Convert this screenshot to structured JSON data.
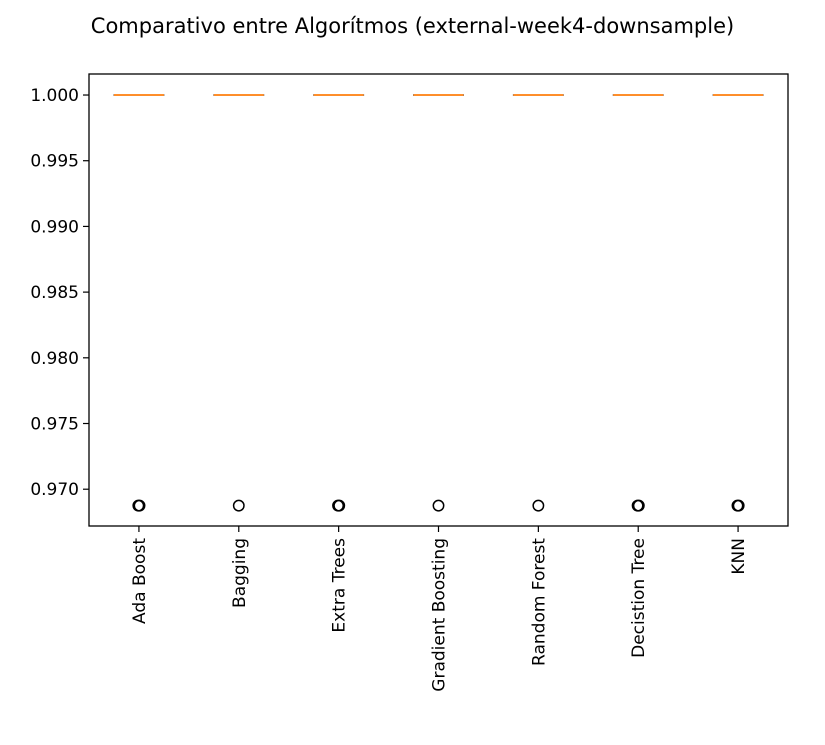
{
  "chart_data": {
    "type": "boxplot",
    "title": "Comparativo entre Algorítmos (external-week4-downsample)",
    "xlabel": "",
    "ylabel": "",
    "ylim": [
      0.9672,
      1.0016
    ],
    "yticks": [
      "1.000",
      "0.995",
      "0.990",
      "0.985",
      "0.980",
      "0.975",
      "0.970"
    ],
    "grid": false,
    "categories": [
      "Ada Boost",
      "Bagging",
      "Extra Trees",
      "Gradient Boosting",
      "Random Forest",
      "Decistion Tree",
      "KNN"
    ],
    "series": [
      {
        "category": "Ada Boost",
        "q1": 1.0,
        "median": 1.0,
        "q3": 1.0,
        "whisker_low": 1.0,
        "whisker_high": 1.0,
        "outliers": [
          0.96875,
          0.96875
        ]
      },
      {
        "category": "Bagging",
        "q1": 1.0,
        "median": 1.0,
        "q3": 1.0,
        "whisker_low": 1.0,
        "whisker_high": 1.0,
        "outliers": [
          0.96875
        ]
      },
      {
        "category": "Extra Trees",
        "q1": 1.0,
        "median": 1.0,
        "q3": 1.0,
        "whisker_low": 1.0,
        "whisker_high": 1.0,
        "outliers": [
          0.96875,
          0.96875
        ]
      },
      {
        "category": "Gradient Boosting",
        "q1": 1.0,
        "median": 1.0,
        "q3": 1.0,
        "whisker_low": 1.0,
        "whisker_high": 1.0,
        "outliers": [
          0.96875
        ]
      },
      {
        "category": "Random Forest",
        "q1": 1.0,
        "median": 1.0,
        "q3": 1.0,
        "whisker_low": 1.0,
        "whisker_high": 1.0,
        "outliers": [
          0.96875
        ]
      },
      {
        "category": "Decistion Tree",
        "q1": 1.0,
        "median": 1.0,
        "q3": 1.0,
        "whisker_low": 1.0,
        "whisker_high": 1.0,
        "outliers": [
          0.96875,
          0.96875
        ]
      },
      {
        "category": "KNN",
        "q1": 1.0,
        "median": 1.0,
        "q3": 1.0,
        "whisker_low": 1.0,
        "whisker_high": 1.0,
        "outliers": [
          0.96875,
          0.96875
        ]
      }
    ],
    "colors": {
      "median": "#ff7f0e",
      "box": "#000000",
      "outlier_edge": "#000000"
    }
  }
}
